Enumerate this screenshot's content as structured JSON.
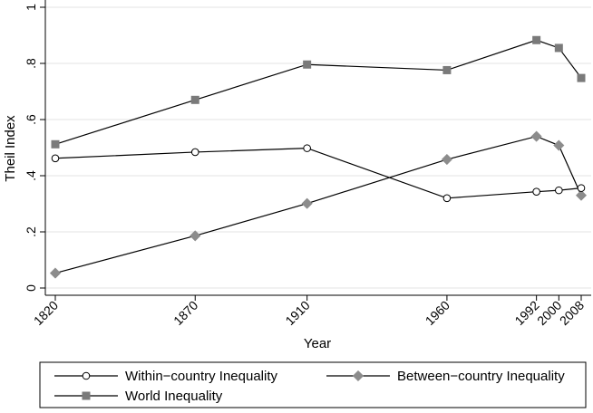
{
  "chart_data": {
    "type": "line",
    "xlabel": "Year",
    "ylabel": "Theil Index",
    "x": [
      1820,
      1870,
      1910,
      1960,
      1992,
      2000,
      2008
    ],
    "x_ticks": [
      "1820",
      "1870",
      "1910",
      "1960",
      "1992",
      "2000",
      "2008"
    ],
    "y_ticks": [
      "0",
      ".2",
      ".4",
      ".6",
      ".8",
      "1"
    ],
    "ylim": [
      0,
      1
    ],
    "grid": true,
    "legend_position": "bottom",
    "series": [
      {
        "name": "Within−country Inequality",
        "marker": "hollow-circle",
        "color": "#000000",
        "values": [
          0.462,
          0.484,
          0.498,
          0.32,
          0.343,
          0.348,
          0.356
        ]
      },
      {
        "name": "Between−country Inequality",
        "marker": "diamond",
        "color": "#8c8c8c",
        "values": [
          0.053,
          0.186,
          0.301,
          0.458,
          0.54,
          0.508,
          0.33
        ]
      },
      {
        "name": "World Inequality",
        "marker": "square",
        "color": "#7a7a7a",
        "values": [
          0.512,
          0.67,
          0.796,
          0.776,
          0.883,
          0.855,
          0.748
        ]
      }
    ]
  }
}
